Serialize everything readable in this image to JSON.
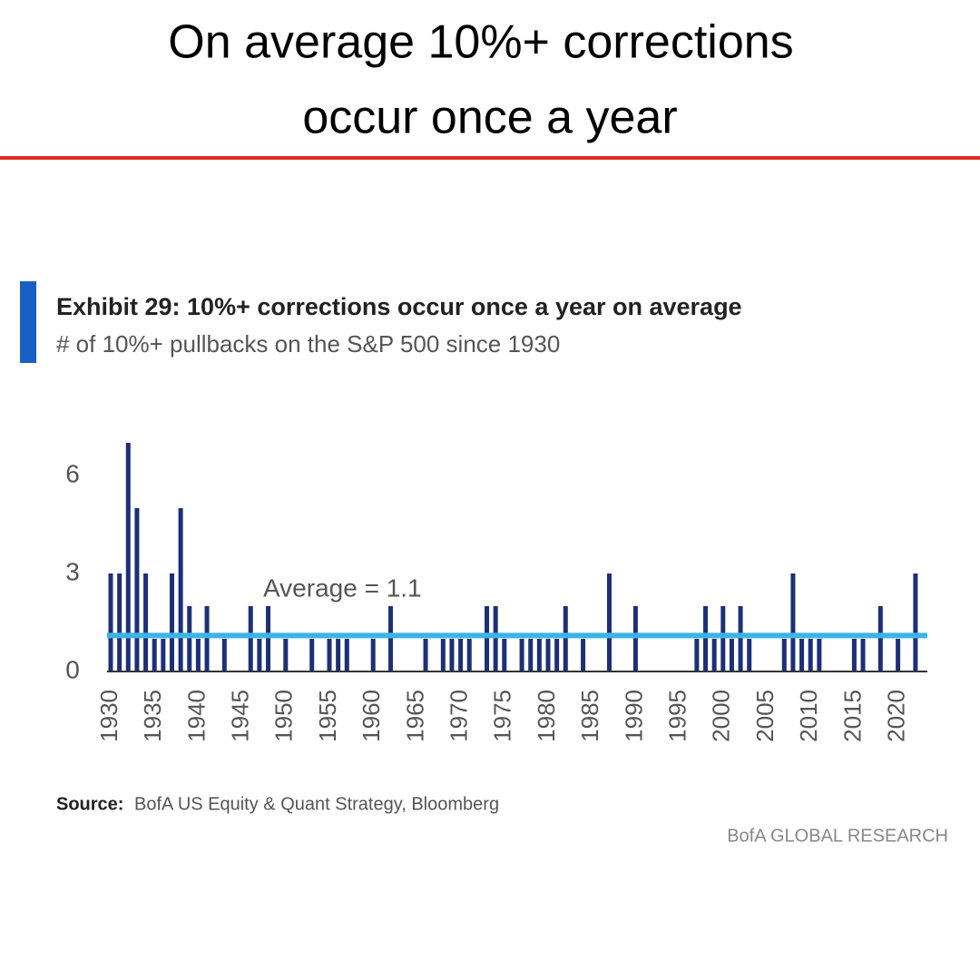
{
  "header": {
    "title_lines": [
      "On average 10%+ corrections",
      "occur once a year"
    ]
  },
  "chart_data": {
    "type": "bar",
    "title": "Exhibit 29: 10%+ corrections occur once a year on average",
    "subtitle": "# of 10%+ pullbacks on the S&P 500 since 1930",
    "categories": [
      "1930",
      null,
      null,
      null,
      null,
      "1935",
      null,
      null,
      null,
      null,
      "1940",
      null,
      null,
      null,
      null,
      "1945",
      null,
      null,
      null,
      null,
      "1950",
      null,
      null,
      null,
      null,
      "1955",
      null,
      null,
      null,
      null,
      "1960",
      null,
      null,
      null,
      null,
      "1965",
      null,
      null,
      null,
      null,
      "1970",
      null,
      null,
      null,
      null,
      "1975",
      null,
      null,
      null,
      null,
      "1980",
      null,
      null,
      null,
      null,
      "1985",
      null,
      null,
      null,
      null,
      "1990",
      null,
      null,
      null,
      null,
      "1995",
      null,
      null,
      null,
      null,
      "2000",
      null,
      null,
      null,
      null,
      "2005",
      null,
      null,
      null,
      null,
      "2010",
      null,
      null,
      null,
      null,
      "2015",
      null,
      null,
      null,
      null,
      "2020",
      null,
      null
    ],
    "values": [
      3,
      3,
      7,
      5,
      3,
      1,
      1,
      3,
      5,
      2,
      1,
      2,
      0,
      1,
      0,
      0,
      2,
      1,
      2,
      0,
      1,
      0,
      0,
      1,
      0,
      1,
      1,
      1,
      0,
      0,
      1,
      0,
      2,
      0,
      0,
      0,
      1,
      0,
      1,
      1,
      1,
      1,
      0,
      2,
      2,
      1,
      0,
      1,
      1,
      1,
      1,
      1,
      2,
      0,
      1,
      0,
      0,
      3,
      0,
      0,
      2,
      0,
      0,
      0,
      0,
      0,
      0,
      1,
      2,
      1,
      2,
      1,
      2,
      1,
      0,
      0,
      0,
      1,
      3,
      1,
      1,
      1,
      0,
      0,
      0,
      1,
      1,
      0,
      2,
      0,
      1,
      0,
      3
    ],
    "color": "#1c2f78",
    "average": 1.1,
    "average_color": "#3cb4e5",
    "average_label": "Average = 1.1",
    "ylim": [
      0,
      7
    ],
    "yticks": [
      0,
      3,
      6
    ],
    "source_label": "Source:",
    "source": "BofA US Equity & Quant Strategy, Bloomberg",
    "brand": "BofA GLOBAL RESEARCH"
  }
}
